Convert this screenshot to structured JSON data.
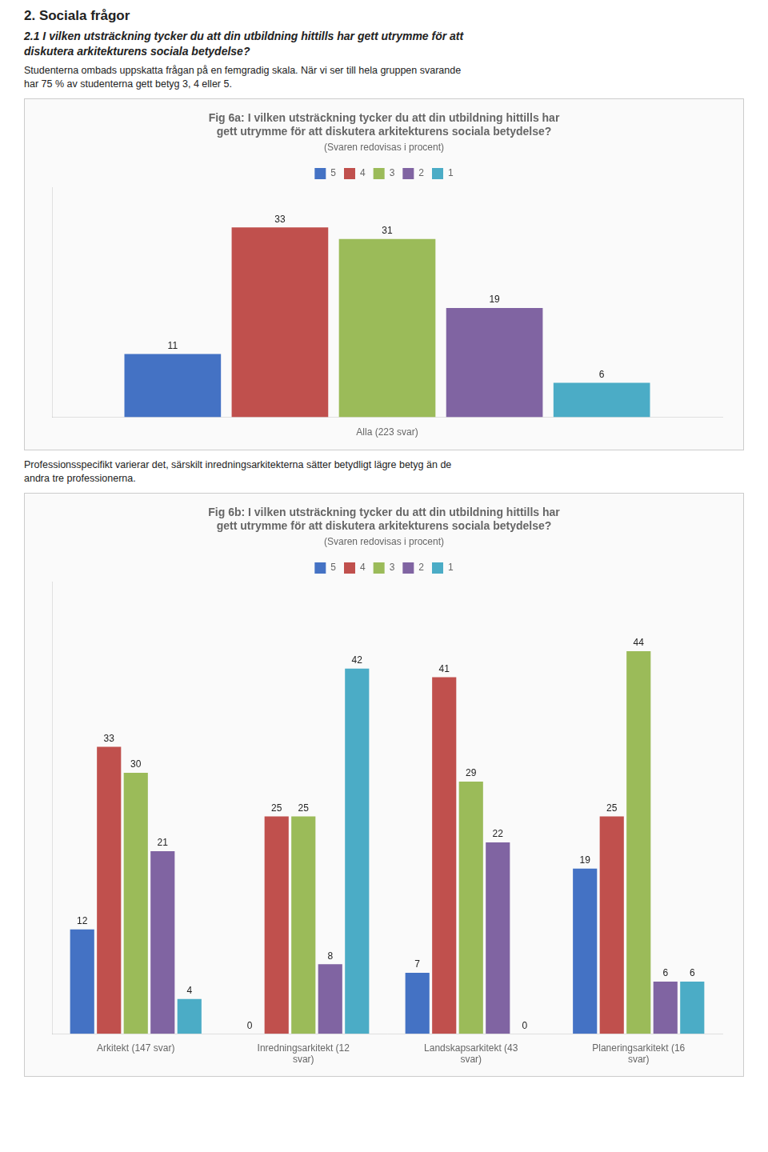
{
  "chart_data": [
    {
      "type": "bar",
      "annotations": [
        "2. Sociala frågor",
        "2.1 I vilken utsträckning tycker du att din utbildning hittills har gett utrymme för att\ndiskutera arkitekturens sociala betydelse?",
        "Studenterna ombads uppskatta frågan på en femgradig skala. När vi ser till hela gruppen svarande\nhar 75 % av studenterna gett betyg 3, 4 eller 5."
      ],
      "title": [
        "Fig 6a: I vilken utsträckning tycker du att din utbildning hittills har",
        "gett utrymme för att diskutera arkitekturens sociala betydelse?"
      ],
      "subtitle": "(Svaren redovisas i procent)",
      "xlabel": "Alla (223 svar)",
      "categories": [
        null
      ],
      "series": [
        {
          "name": "5",
          "color": "#4472c4",
          "values": [
            11
          ]
        },
        {
          "name": "4",
          "color": "#c0504d",
          "values": [
            33
          ]
        },
        {
          "name": "3",
          "color": "#9bbb59",
          "values": [
            31
          ]
        },
        {
          "name": "2",
          "color": "#8064a2",
          "values": [
            19
          ]
        },
        {
          "name": "1",
          "color": "#4bacc6",
          "values": [
            6
          ]
        }
      ],
      "ylim": [
        0,
        40
      ],
      "grid": false,
      "legend": "top",
      "data_labels": true,
      "tick_labels": false
    },
    {
      "type": "bar",
      "annotations": [
        "Professionsspecifikt varierar det, särskilt inredningsarkitekterna sätter betydligt lägre betyg än de\nandra tre professionerna."
      ],
      "title": [
        "Fig 6b: I vilken utsträckning tycker du att din utbildning hittills har",
        "gett utrymme för att diskutera arkitekturens sociala betydelse?"
      ],
      "subtitle": "(Svaren redovisas i procent)",
      "categories": [
        "Arkitekt (147 svar)",
        "Inredningsarkitekt (12\nsvar)",
        "Landskapsarkitekt (43\nsvar)",
        "Planeringsarkitekt (16\nsvar)"
      ],
      "series": [
        {
          "name": "5",
          "color": "#4472c4",
          "values": [
            12,
            0,
            7,
            19
          ]
        },
        {
          "name": "4",
          "color": "#c0504d",
          "values": [
            33,
            25,
            41,
            25
          ]
        },
        {
          "name": "3",
          "color": "#9bbb59",
          "values": [
            30,
            25,
            29,
            44
          ]
        },
        {
          "name": "2",
          "color": "#8064a2",
          "values": [
            21,
            8,
            22,
            6
          ]
        },
        {
          "name": "1",
          "color": "#4bacc6",
          "values": [
            4,
            42,
            0,
            6
          ]
        }
      ],
      "ylim": [
        0,
        52
      ],
      "grid": false,
      "legend": "top",
      "data_labels": true,
      "tick_labels": "x"
    }
  ]
}
